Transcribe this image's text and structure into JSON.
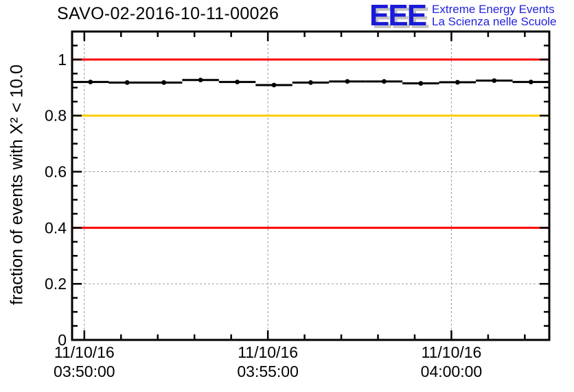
{
  "header": {
    "title": "SAVO-02-2016-10-11-00026",
    "logo": {
      "acronym": "EEE",
      "tagline_line1": "Extreme Energy Events",
      "tagline_line2": "La Scienza nelle Scuole",
      "text_color": "#2222dd",
      "shadow_color": "#c4c4c4"
    }
  },
  "chart_data": {
    "type": "line",
    "title": "SAVO-02-2016-10-11-00026",
    "xlabel": "",
    "ylabel": "fraction of events with X² < 10.0",
    "grid": "dashed-gray-at-major-ticks",
    "legend": "none",
    "colors": {
      "data": "#000000",
      "grid": "#9a9a9a",
      "reference_red": "#ff0000",
      "reference_orange": "#ffcc00"
    },
    "y_axis": {
      "min": 0,
      "max": 1.1,
      "major_ticks": [
        {
          "value": 0,
          "label": "0"
        },
        {
          "value": 0.2,
          "label": "0.2"
        },
        {
          "value": 0.4,
          "label": "0.4"
        },
        {
          "value": 0.6,
          "label": "0.6"
        },
        {
          "value": 0.8,
          "label": "0.8"
        },
        {
          "value": 1,
          "label": "1"
        }
      ],
      "minor_step": 0.05
    },
    "x_axis": {
      "date": "11/10/16",
      "start": "03:49:40",
      "end": "04:02:40",
      "major_ticks": [
        "03:50:00",
        "03:55:00",
        "04:00:00"
      ],
      "minor_step_s": 60
    },
    "reference_lines": [
      {
        "y": 1.0,
        "color": "#ff0000"
      },
      {
        "y": 0.8,
        "color": "#ffcc00"
      },
      {
        "y": 0.4,
        "color": "#ff0000"
      }
    ],
    "series": [
      {
        "marker": "filled-circle",
        "x_bin_halfwidth_s": 30,
        "x_times": [
          "03:50:10",
          "03:51:10",
          "03:52:10",
          "03:53:10",
          "03:54:10",
          "03:55:10",
          "03:56:10",
          "03:57:10",
          "03:58:10",
          "03:59:10",
          "04:00:10",
          "04:01:10",
          "04:02:10"
        ],
        "values": [
          0.92,
          0.918,
          0.918,
          0.927,
          0.92,
          0.909,
          0.918,
          0.922,
          0.922,
          0.915,
          0.919,
          0.925,
          0.92
        ]
      }
    ]
  }
}
